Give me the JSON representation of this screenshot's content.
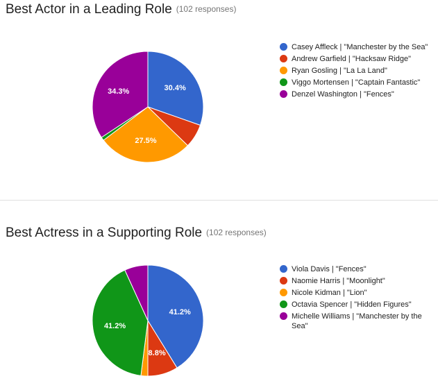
{
  "colors": {
    "blue": "#3366cc",
    "red": "#dc3912",
    "orange": "#ff9900",
    "green": "#109618",
    "purple": "#990099"
  },
  "chart_data": [
    {
      "type": "pie",
      "title": "Best Actor in a Leading Role",
      "responses": "(102 responses)",
      "start_angle_deg": 90,
      "labels": [
        "Casey Affleck | \"Manchester by the Sea\"",
        "Andrew Garfield | \"Hacksaw Ridge\"",
        "Ryan Gosling | \"La La Land\"",
        "Viggo Mortensen | \"Captain Fantastic\"",
        "Denzel Washington | \"Fences\""
      ],
      "values": [
        30.4,
        6.9,
        27.5,
        1.0,
        34.3
      ],
      "slice_labels": [
        "30.4%",
        "",
        "27.5%",
        "",
        "34.3%"
      ],
      "colors": [
        "#3366cc",
        "#dc3912",
        "#ff9900",
        "#109618",
        "#990099"
      ],
      "legend_position": "right"
    },
    {
      "type": "pie",
      "title": "Best Actress in a Supporting Role",
      "responses": "(102 responses)",
      "start_angle_deg": 90,
      "labels": [
        "Viola Davis | \"Fences\"",
        "Naomie Harris | \"Moonlight\"",
        "Nicole Kidman | \"Lion\"",
        "Octavia Spencer | \"Hidden Figures\"",
        "Michelle Williams | \"Manchester by the Sea\""
      ],
      "values": [
        41.2,
        8.8,
        2.0,
        41.2,
        6.8
      ],
      "slice_labels": [
        "41.2%",
        "8.8%",
        "",
        "41.2%",
        ""
      ],
      "colors": [
        "#3366cc",
        "#dc3912",
        "#ff9900",
        "#109618",
        "#990099"
      ],
      "legend_position": "right"
    }
  ]
}
